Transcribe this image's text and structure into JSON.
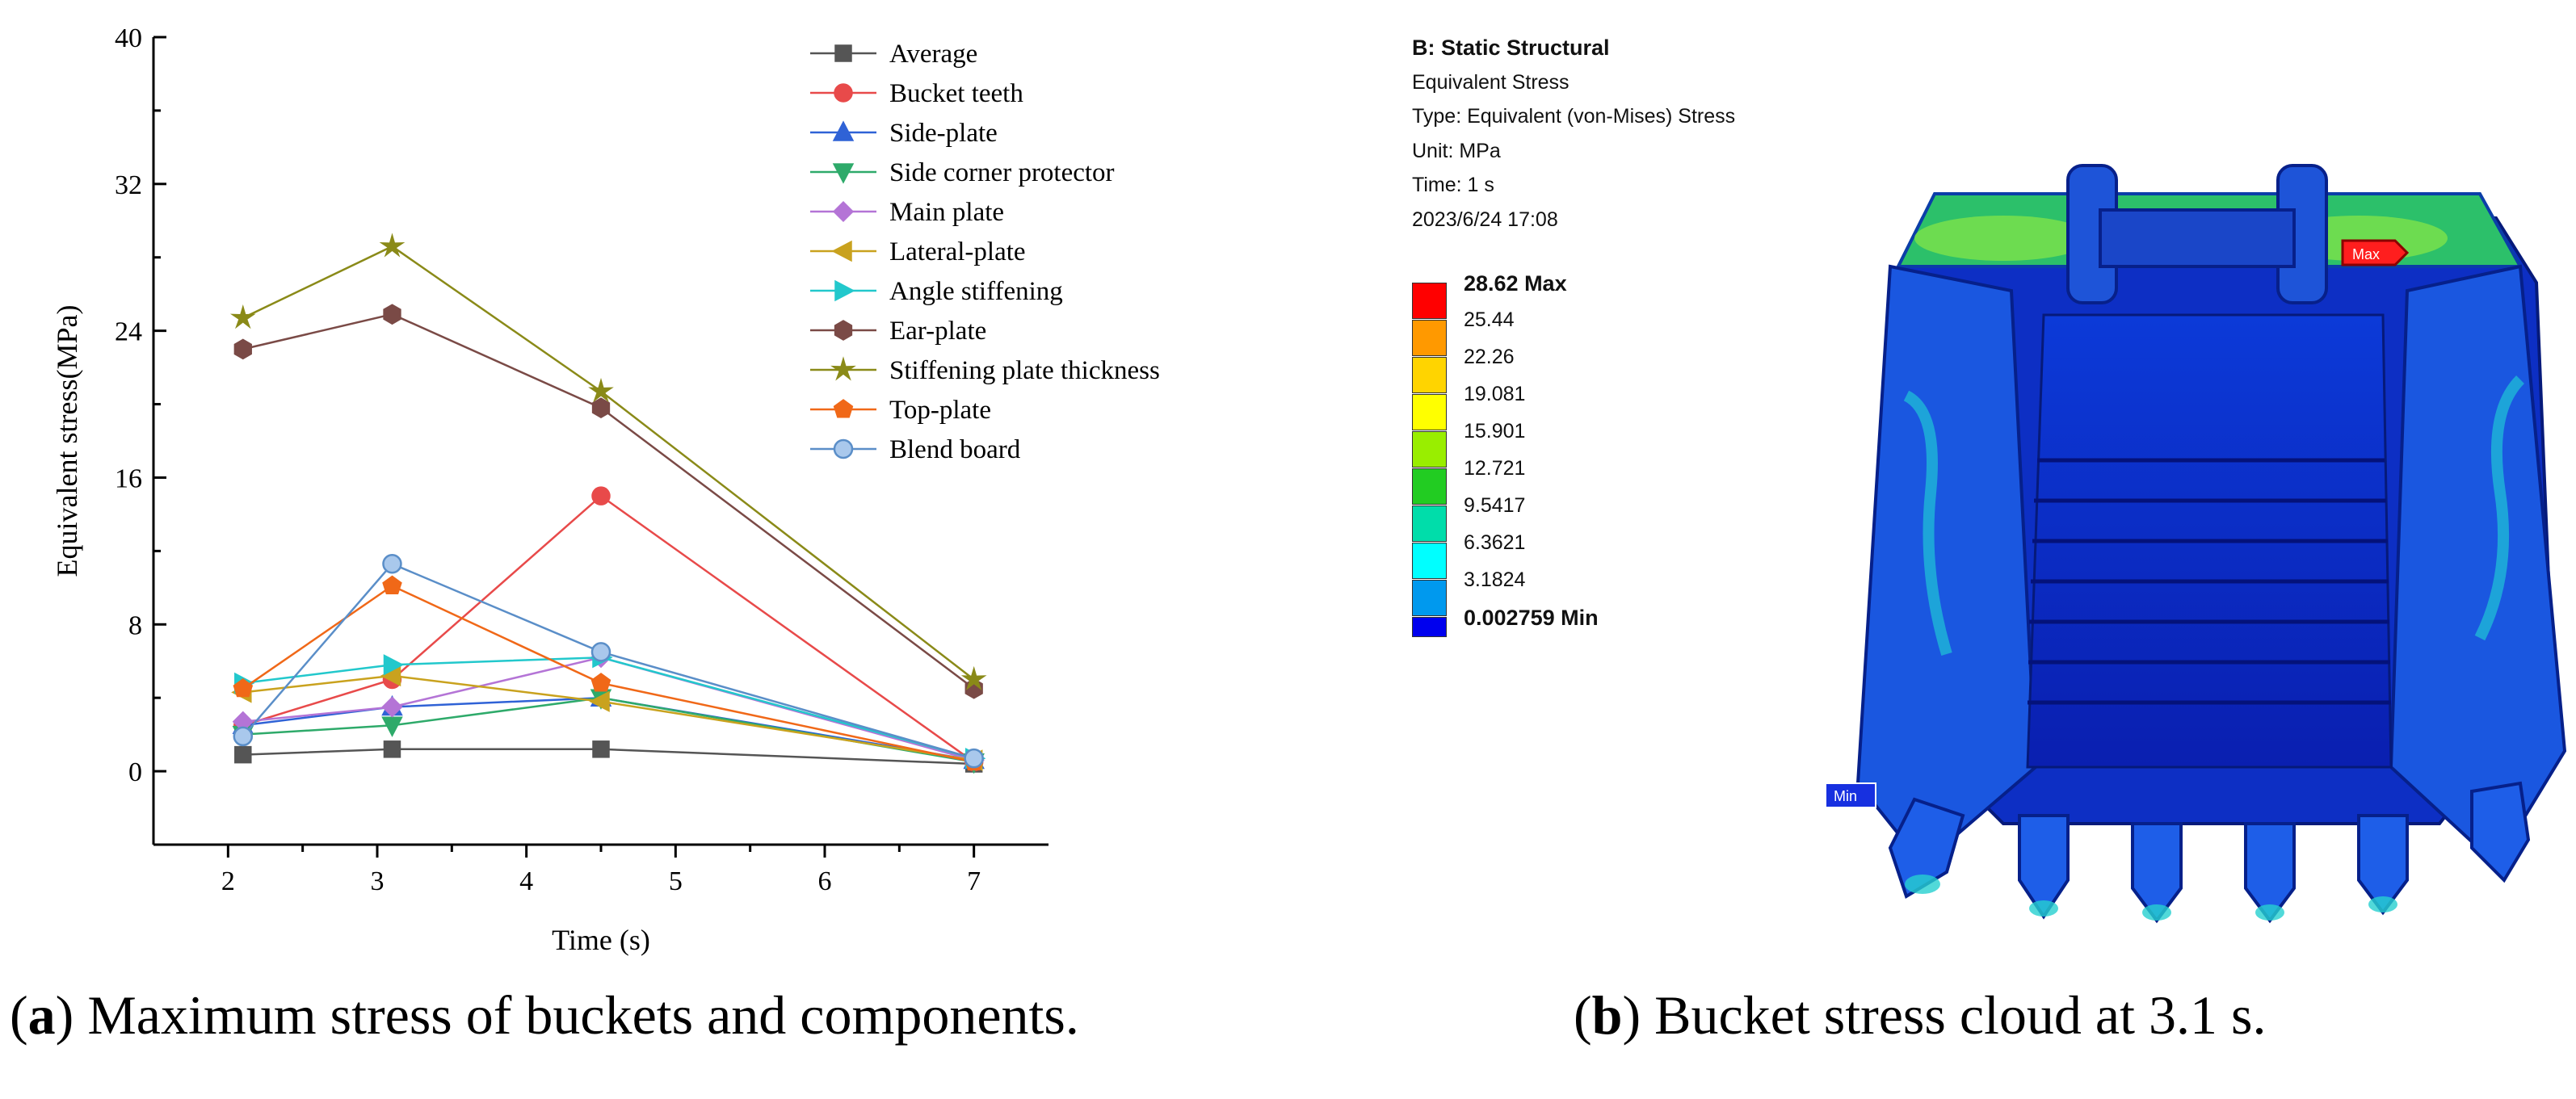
{
  "chart_data": {
    "type": "line",
    "title": "",
    "xlabel": "Time (s)",
    "ylabel": "Equivalent stress(MPa)",
    "xlim": [
      1.5,
      7.5
    ],
    "ylim": [
      -4,
      40
    ],
    "xticks": [
      2,
      3,
      4,
      5,
      6,
      7
    ],
    "yticks": [
      0,
      8,
      16,
      24,
      32,
      40
    ],
    "x": [
      2.1,
      3.1,
      4.5,
      7
    ],
    "series": [
      {
        "name": "Average",
        "color": "#555555",
        "marker": "square",
        "values": [
          0.9,
          1.2,
          1.2,
          0.4
        ]
      },
      {
        "name": "Bucket teeth",
        "color": "#e84a4a",
        "marker": "circle",
        "values": [
          2.5,
          5.0,
          15.0,
          0.5
        ]
      },
      {
        "name": "Side-plate",
        "color": "#2f62d6",
        "marker": "triangle-up",
        "values": [
          2.5,
          3.5,
          4.0,
          0.6
        ]
      },
      {
        "name": "Side corner protector",
        "color": "#2eaa6a",
        "marker": "triangle-down",
        "values": [
          2.0,
          2.5,
          4.0,
          0.5
        ]
      },
      {
        "name": "Main plate",
        "color": "#b474d6",
        "marker": "diamond",
        "values": [
          2.7,
          3.5,
          6.2,
          0.6
        ]
      },
      {
        "name": "Lateral-plate",
        "color": "#c9a21e",
        "marker": "triangle-left",
        "values": [
          4.3,
          5.2,
          3.8,
          0.6
        ]
      },
      {
        "name": "Angle stiffening",
        "color": "#22c8cc",
        "marker": "triangle-right",
        "values": [
          4.8,
          5.8,
          6.2,
          0.7
        ]
      },
      {
        "name": "Ear-plate",
        "color": "#7a4a46",
        "marker": "hexagon",
        "values": [
          23.0,
          24.9,
          19.8,
          4.5
        ]
      },
      {
        "name": "Stiffening plate thickness",
        "color": "#8a8a18",
        "marker": "star",
        "values": [
          24.7,
          28.6,
          20.7,
          5.0
        ]
      },
      {
        "name": "Top-plate",
        "color": "#f06818",
        "marker": "pentagon",
        "values": [
          4.5,
          10.1,
          4.8,
          0.5
        ]
      },
      {
        "name": "Blend board",
        "color": "#5a8ec8",
        "marker": "sphere",
        "values": [
          1.9,
          11.3,
          6.5,
          0.7
        ]
      }
    ]
  },
  "panel_b": {
    "title": "B: Static Structural",
    "line1": "Equivalent Stress",
    "line2": "Type: Equivalent (von-Mises) Stress",
    "line3": "Unit: MPa",
    "line4": "Time: 1 s",
    "line5": "2023/6/24 17:08",
    "scale": [
      {
        "label": "28.62 Max",
        "color": "#ff0000"
      },
      {
        "label": "25.44",
        "color": "#ff9900"
      },
      {
        "label": "22.26",
        "color": "#ffd400"
      },
      {
        "label": "19.081",
        "color": "#ffff00"
      },
      {
        "label": "15.901",
        "color": "#99ee00"
      },
      {
        "label": "12.721",
        "color": "#22cc22"
      },
      {
        "label": "9.5417",
        "color": "#00ddaa"
      },
      {
        "label": "6.3621",
        "color": "#00ffff"
      },
      {
        "label": "3.1824",
        "color": "#0099ee"
      },
      {
        "label": "0.002759 Min",
        "color": "#0000ee"
      }
    ],
    "max_tag": "Max",
    "min_tag": "Min"
  },
  "captions": {
    "a_letter": "a",
    "a_text": " Maximum stress of buckets and components.",
    "b_letter": "b",
    "b_text": " Bucket stress cloud at 3.1 s."
  }
}
